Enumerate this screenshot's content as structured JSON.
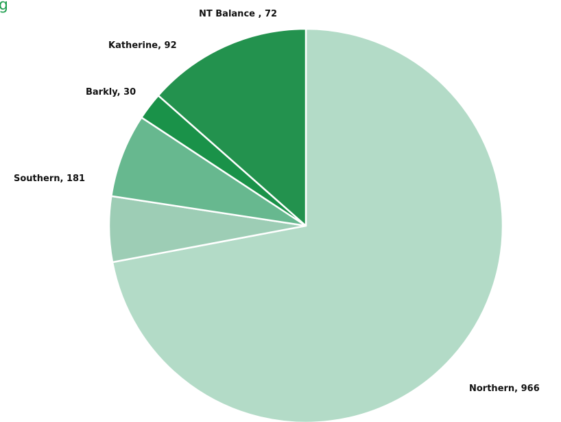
{
  "chart_data": {
    "type": "pie",
    "title": "g",
    "categories": [
      "Northern",
      "NT Balance ",
      "Katherine",
      "Barkly",
      "Southern"
    ],
    "values": [
      966,
      72,
      92,
      30,
      181
    ],
    "labels": [
      "Northern, 966",
      "NT Balance , 72",
      "Katherine, 92",
      "Barkly, 30",
      "Southern, 181"
    ],
    "colors": [
      "#b3dbc7",
      "#9dcdb5",
      "#67b88f",
      "#1a9249",
      "#23924e"
    ],
    "start_angle": "12 o'clock",
    "direction": "clockwise",
    "legend": "none"
  }
}
